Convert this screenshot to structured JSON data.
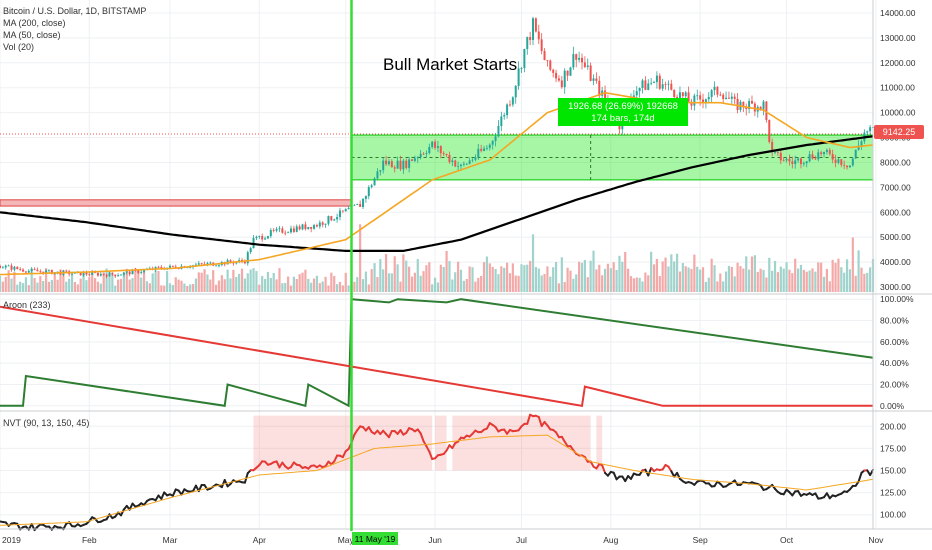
{
  "legend": {
    "symbol": "Bitcoin / U.S. Dollar, 1D, BITSTAMP",
    "ma200": "MA (200, close)",
    "ma50": "MA (50, close)",
    "vol": "Vol (20)"
  },
  "annotation": {
    "bull": "Bull Market Starts",
    "measure_line1": "1926.68 (26.69%) 192668",
    "measure_line2": "174 bars, 174d"
  },
  "price_tag": "9142.25",
  "marker_date": "11 May '19",
  "colors": {
    "up": "#26a69a",
    "down": "#ef5350",
    "ma50": "#f5a623",
    "ma200": "#000000",
    "aroon_up": "#2e7d32",
    "aroon_down": "#e53935",
    "nvt": "#e53935",
    "nvt_signal": "#f5a623",
    "marker": "#33dd33",
    "box": "#00e600"
  },
  "chart_data": [
    {
      "type": "candlestick",
      "title": "Bitcoin / U.S. Dollar, 1D, BITSTAMP",
      "x_ticks": [
        "2019",
        "Feb",
        "Mar",
        "Apr",
        "May",
        "Jun",
        "Jul",
        "Aug",
        "Sep",
        "Oct",
        "Nov"
      ],
      "y_ticks": [
        3000,
        4000,
        5000,
        6000,
        7000,
        8000,
        9000,
        10000,
        11000,
        12000,
        13000,
        14000
      ],
      "y_tick_labels": [
        "3000.00",
        "4000.00",
        "5000.00",
        "6000.00",
        "7000.00",
        "8000.00",
        "9000.00",
        "10000.00",
        "11000.00",
        "12000.00",
        "13000.00",
        "14000.00"
      ],
      "ylim": [
        2800,
        14400
      ],
      "close_keypoints": [
        [
          0,
          3850
        ],
        [
          10,
          3650
        ],
        [
          25,
          3550
        ],
        [
          40,
          3500
        ],
        [
          55,
          3750
        ],
        [
          70,
          3900
        ],
        [
          85,
          4050
        ],
        [
          88,
          4900
        ],
        [
          95,
          5200
        ],
        [
          110,
          5500
        ],
        [
          125,
          6300
        ],
        [
          133,
          8000
        ],
        [
          140,
          7900
        ],
        [
          150,
          8700
        ],
        [
          160,
          7800
        ],
        [
          170,
          8700
        ],
        [
          178,
          10800
        ],
        [
          182,
          12500
        ],
        [
          185,
          13500
        ],
        [
          190,
          11800
        ],
        [
          195,
          11300
        ],
        [
          200,
          12400
        ],
        [
          210,
          10500
        ],
        [
          215,
          9500
        ],
        [
          220,
          10900
        ],
        [
          228,
          11300
        ],
        [
          240,
          10400
        ],
        [
          250,
          10900
        ],
        [
          255,
          10300
        ],
        [
          265,
          10300
        ],
        [
          268,
          8300
        ],
        [
          275,
          8000
        ],
        [
          285,
          8400
        ],
        [
          295,
          7900
        ],
        [
          300,
          9200
        ],
        [
          303,
          9300
        ]
      ],
      "ma50_keypoints": [
        [
          0,
          3500
        ],
        [
          30,
          3600
        ],
        [
          60,
          3750
        ],
        [
          90,
          4100
        ],
        [
          120,
          4900
        ],
        [
          150,
          7300
        ],
        [
          170,
          8100
        ],
        [
          190,
          10000
        ],
        [
          210,
          10800
        ],
        [
          230,
          10400
        ],
        [
          250,
          10400
        ],
        [
          265,
          10100
        ],
        [
          280,
          9000
        ],
        [
          295,
          8600
        ],
        [
          303,
          8700
        ]
      ],
      "ma200_keypoints": [
        [
          0,
          6000
        ],
        [
          30,
          5600
        ],
        [
          60,
          5100
        ],
        [
          90,
          4700
        ],
        [
          120,
          4450
        ],
        [
          140,
          4450
        ],
        [
          160,
          4900
        ],
        [
          180,
          5700
        ],
        [
          200,
          6500
        ],
        [
          220,
          7200
        ],
        [
          240,
          7800
        ],
        [
          260,
          8300
        ],
        [
          280,
          8700
        ],
        [
          303,
          9050
        ]
      ],
      "box_range": [
        7300,
        9100
      ],
      "volume_ticks": [
        3000,
        4000,
        5000
      ],
      "legend": [
        "MA (200, close)",
        "MA (50, close)",
        "Vol (20)"
      ]
    },
    {
      "type": "line",
      "title": "Aroon (233)",
      "y_ticks": [
        0,
        20,
        40,
        60,
        80,
        100
      ],
      "y_tick_labels": [
        "0.00%",
        "20.00%",
        "40.00%",
        "60.00%",
        "80.00%",
        "100.00%"
      ],
      "ylim": [
        -3,
        103
      ],
      "series": [
        {
          "name": "Aroon Up",
          "points": [
            [
              0,
              0
            ],
            [
              8,
              0
            ],
            [
              9,
              28
            ],
            [
              78,
              0
            ],
            [
              79,
              20
            ],
            [
              106,
              0
            ],
            [
              107,
              20
            ],
            [
              121,
              0
            ],
            [
              122,
              100
            ],
            [
              135,
              97
            ],
            [
              138,
              100
            ],
            [
              155,
              97
            ],
            [
              160,
              100
            ],
            [
              303,
              45
            ]
          ]
        },
        {
          "name": "Aroon Down",
          "points": [
            [
              0,
              93
            ],
            [
              202,
              0
            ],
            [
              203,
              18
            ],
            [
              230,
              0
            ],
            [
              303,
              0
            ]
          ]
        }
      ]
    },
    {
      "type": "line",
      "title": "NVT (90, 13, 150, 45)",
      "y_ticks": [
        100,
        125,
        150,
        175,
        200
      ],
      "y_tick_labels": [
        "100.00",
        "125.00",
        "150.00",
        "175.00",
        "200.00"
      ],
      "ylim": [
        85,
        215
      ],
      "series": [
        {
          "name": "NVT",
          "points": [
            [
              0,
              90
            ],
            [
              10,
              86
            ],
            [
              25,
              88
            ],
            [
              40,
              100
            ],
            [
              50,
              115
            ],
            [
              60,
              125
            ],
            [
              70,
              130
            ],
            [
              85,
              140
            ],
            [
              90,
              160
            ],
            [
              110,
              152
            ],
            [
              120,
              170
            ],
            [
              125,
              200
            ],
            [
              135,
              190
            ],
            [
              145,
              198
            ],
            [
              150,
              160
            ],
            [
              160,
              185
            ],
            [
              170,
              200
            ],
            [
              178,
              193
            ],
            [
              185,
              212
            ],
            [
              195,
              185
            ],
            [
              205,
              160
            ],
            [
              215,
              140
            ],
            [
              225,
              148
            ],
            [
              230,
              155
            ],
            [
              240,
              135
            ],
            [
              260,
              135
            ],
            [
              275,
              125
            ],
            [
              285,
              120
            ],
            [
              295,
              125
            ],
            [
              300,
              150
            ],
            [
              303,
              147
            ]
          ]
        },
        {
          "name": "Signal",
          "points": [
            [
              0,
              88
            ],
            [
              30,
              92
            ],
            [
              60,
              120
            ],
            [
              90,
              145
            ],
            [
              110,
              150
            ],
            [
              130,
              175
            ],
            [
              150,
              180
            ],
            [
              170,
              188
            ],
            [
              190,
              190
            ],
            [
              205,
              160
            ],
            [
              220,
              150
            ],
            [
              240,
              140
            ],
            [
              260,
              135
            ],
            [
              280,
              128
            ],
            [
              303,
              140
            ]
          ]
        }
      ],
      "thresholds": [
        150
      ]
    }
  ]
}
